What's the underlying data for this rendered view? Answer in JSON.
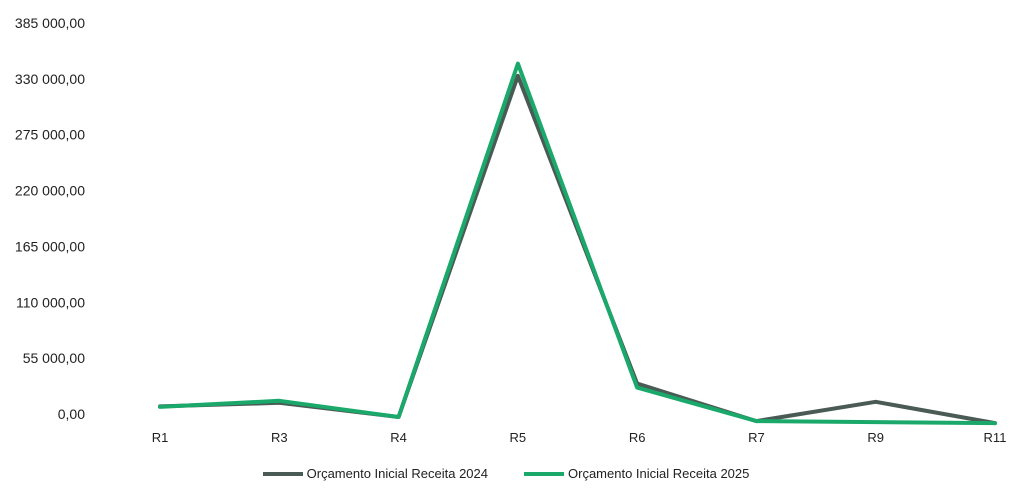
{
  "chart_data": {
    "type": "line",
    "categories": [
      "R1",
      "R3",
      "R4",
      "R5",
      "R6",
      "R7",
      "R9",
      "R11"
    ],
    "series": [
      {
        "name": "Orçamento Inicial  Receita 2024",
        "color": "#4a5a55",
        "values": [
          7500,
          11000,
          -3000,
          333000,
          30000,
          -7000,
          12000,
          -9000
        ]
      },
      {
        "name": "Orçamento Inicial Receita 2025",
        "color": "#1aa96b",
        "values": [
          7000,
          13000,
          -3000,
          345000,
          26000,
          -7000,
          -8000,
          -9000
        ]
      }
    ],
    "yticks": [
      "0,00",
      "55 000,00",
      "110 000,00",
      "165 000,00",
      "220 000,00",
      "275 000,00",
      "330 000,00",
      "385 000,00"
    ],
    "ylim": [
      0,
      385000
    ],
    "grid": false,
    "legend_position": "bottom"
  }
}
